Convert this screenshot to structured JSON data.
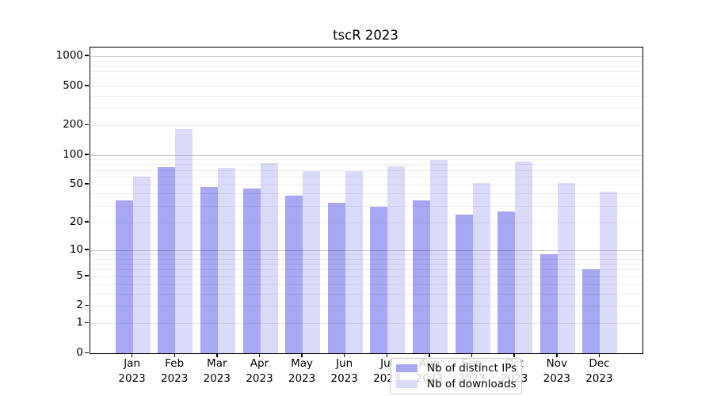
{
  "title": "tscR 2023",
  "chart_data": {
    "type": "bar",
    "title": "tscR 2023",
    "categories": [
      "Jan 2023",
      "Feb 2023",
      "Mar 2023",
      "Apr 2023",
      "May 2023",
      "Jun 2023",
      "Jul 2023",
      "Aug 2023",
      "Sep 2023",
      "Oct 2023",
      "Nov 2023",
      "Dec 2023"
    ],
    "series": [
      {
        "name": "Nb of distinct IPs",
        "color": "#a7a7f3",
        "values": [
          34,
          75,
          47,
          45,
          38,
          32,
          29,
          34,
          24,
          26,
          9,
          6
        ]
      },
      {
        "name": "Nb of downloads",
        "color": "#dadaf9",
        "values": [
          60,
          183,
          74,
          83,
          68,
          68,
          76,
          88,
          52,
          86,
          52,
          42
        ]
      }
    ],
    "xlabel": "",
    "ylabel": "",
    "y_axis": {
      "scale": "log1p",
      "ticks": [
        0,
        1,
        2,
        5,
        10,
        20,
        50,
        100,
        200,
        500,
        1000
      ],
      "ylim": [
        0,
        1240
      ],
      "grid": true
    },
    "legend": {
      "position": "lower center"
    }
  }
}
